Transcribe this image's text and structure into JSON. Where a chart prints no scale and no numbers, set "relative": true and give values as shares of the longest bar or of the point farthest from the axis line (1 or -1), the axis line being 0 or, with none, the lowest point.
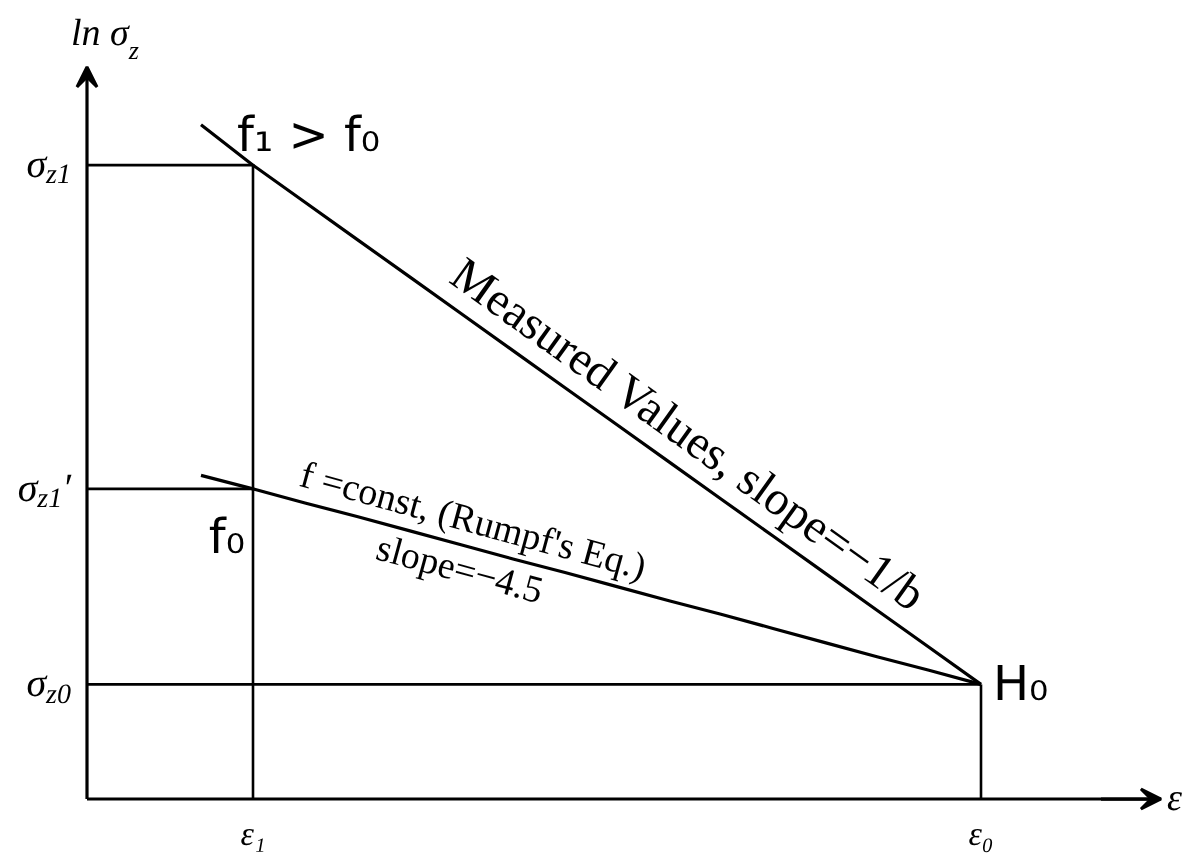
{
  "chart_data": {
    "type": "line",
    "relative": true,
    "ylabel": "ln σ$_{z}$",
    "xlabel": "ε",
    "categories": [
      null,
      "ε₁",
      null,
      null,
      null,
      null,
      null,
      null,
      null,
      null,
      null,
      null,
      null,
      null,
      null,
      "ε₀"
    ],
    "series": [
      {
        "name": "Measured Values, slope=−1/b",
        "color": "#000000",
        "values": [
          1,
          0.94,
          0.885,
          0.83,
          0.775,
          0.72,
          0.665,
          0.61,
          0.555,
          0.5,
          0.445,
          0.39,
          0.335,
          0.28,
          0.225,
          0.17
        ]
      },
      {
        "name": "f =const, (Rumpf's Eq.)\nslope=−4.5",
        "color": "#000000",
        "values": [
          0.48,
          0.46,
          0.439,
          0.419,
          0.398,
          0.377,
          0.356,
          0.336,
          0.315,
          0.294,
          0.274,
          0.253,
          0.232,
          0.211,
          0.191,
          0.17
        ]
      }
    ],
    "ref_lines": [
      {
        "axis": "y",
        "value": 0.94,
        "label": "σ$_{z1}$"
      },
      {
        "axis": "y",
        "value": 0.46,
        "label": "σ$_{z1}$′"
      },
      {
        "axis": "y",
        "value": 0.17,
        "label": "σ$_{z0}$"
      },
      {
        "axis": "x",
        "value": "ε₁"
      },
      {
        "axis": "x",
        "value": "ε₀"
      }
    ],
    "annotations": [
      {
        "text": "f₁ > f₀",
        "x": "ε₁",
        "y": 0.94
      },
      {
        "text": "f₀",
        "x": "ε₁",
        "y": 0.46
      },
      {
        "text": "H₀",
        "x": "ε₀",
        "y": 0.17
      }
    ]
  }
}
